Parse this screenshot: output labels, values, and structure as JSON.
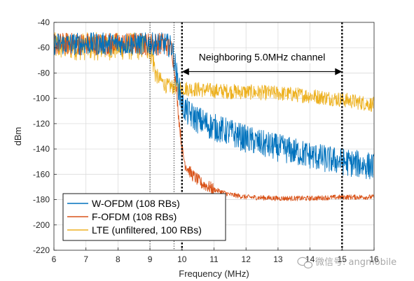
{
  "chart_data": {
    "type": "line",
    "xlabel": "Frequency (MHz)",
    "ylabel": "dBm",
    "xlim": [
      6,
      16
    ],
    "ylim": [
      -220,
      -40
    ],
    "x_ticks": [
      6,
      7,
      8,
      9,
      10,
      11,
      12,
      13,
      14,
      15,
      16
    ],
    "y_ticks": [
      -40,
      -60,
      -80,
      -100,
      -120,
      -140,
      -160,
      -180,
      -200,
      -220
    ],
    "grid": true,
    "legend_position": "bottom-left",
    "annotation": {
      "text": "Neighboring 5.0MHz channel",
      "x_start": 10,
      "x_end": 15,
      "y": -80
    },
    "vertical_markers": [
      {
        "x": 9.0,
        "style": "dotted-thin"
      },
      {
        "x": 9.75,
        "style": "dotted-thin"
      },
      {
        "x": 10.0,
        "style": "dotted-thick"
      },
      {
        "x": 15.0,
        "style": "dotted-thick"
      }
    ],
    "series": [
      {
        "name": "W-OFDM (108 RBs)",
        "color": "#0072BD",
        "x": [
          6.0,
          7.0,
          8.0,
          9.0,
          9.5,
          9.7,
          9.85,
          10.0,
          10.2,
          10.5,
          11.0,
          11.5,
          12.0,
          12.5,
          13.0,
          13.5,
          14.0,
          14.5,
          15.0,
          15.5,
          16.0
        ],
        "values": [
          -57,
          -57,
          -57,
          -57,
          -57,
          -60,
          -85,
          -105,
          -112,
          -117,
          -123,
          -127,
          -132,
          -136,
          -139,
          -142,
          -145,
          -148,
          -150,
          -152,
          -154
        ]
      },
      {
        "name": "F-OFDM (108 RBs)",
        "color": "#D95319",
        "x": [
          6.0,
          7.0,
          8.0,
          9.0,
          9.5,
          9.7,
          9.8,
          9.9,
          10.0,
          10.1,
          10.3,
          10.6,
          11.0,
          11.5,
          12.0,
          13.0,
          14.0,
          15.0,
          16.0
        ],
        "values": [
          -57,
          -57,
          -57,
          -57,
          -57,
          -62,
          -85,
          -115,
          -140,
          -152,
          -160,
          -167,
          -172,
          -176,
          -178,
          -179,
          -179,
          -178,
          -178
        ]
      },
      {
        "name": "LTE (unfiltered, 100 RBs)",
        "color": "#EDB120",
        "x": [
          6.0,
          7.0,
          8.0,
          9.0,
          9.2,
          9.5,
          10.0,
          10.5,
          11.0,
          12.0,
          13.0,
          14.0,
          15.0,
          15.5,
          16.0
        ],
        "values": [
          -59,
          -59,
          -59,
          -59,
          -82,
          -90,
          -92,
          -93,
          -94,
          -95,
          -96,
          -98,
          -101,
          -103,
          -105
        ]
      }
    ]
  },
  "watermark": {
    "text": "微信号: angmobile"
  }
}
